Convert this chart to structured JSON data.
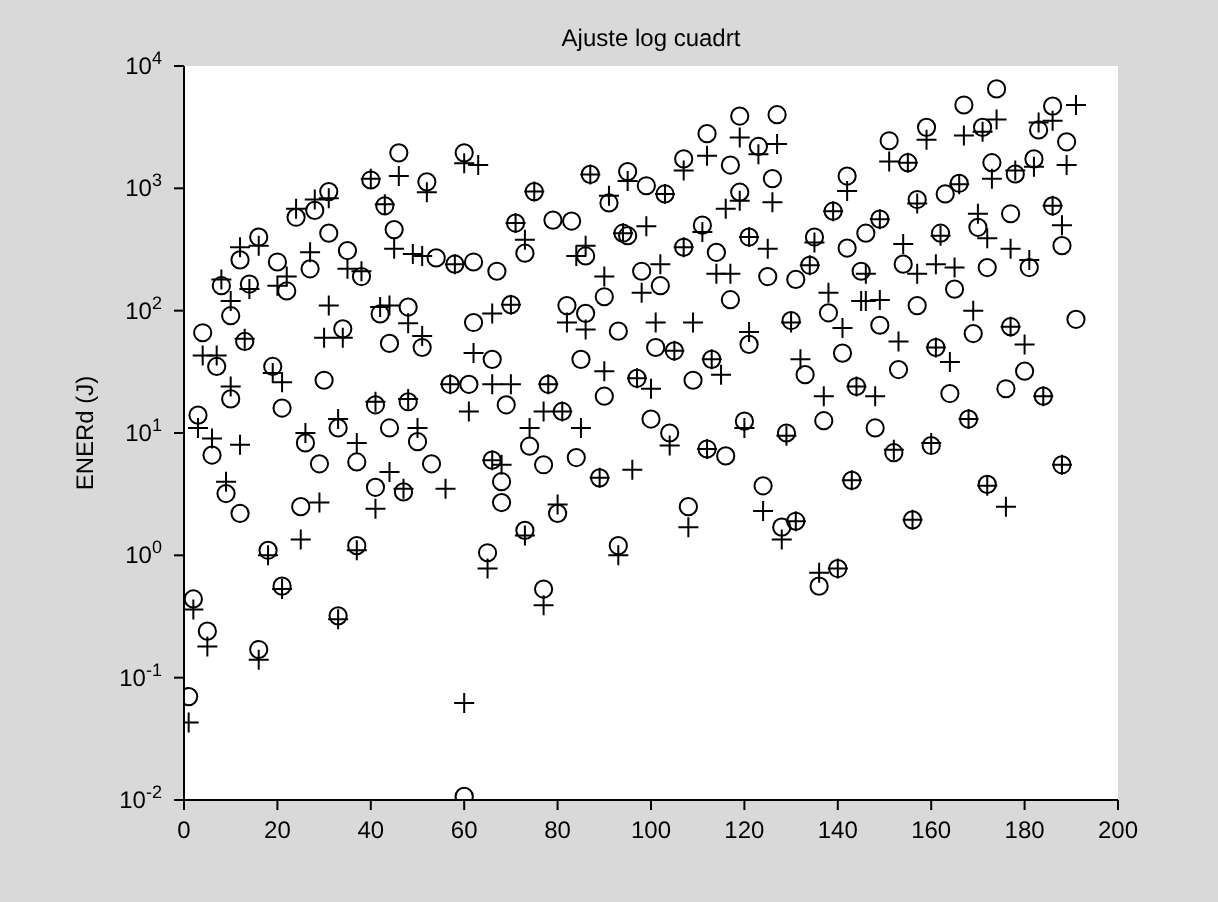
{
  "chart_data": {
    "type": "scatter",
    "title": "Ajuste log cuadrt",
    "ylabel": "ENERd (J)",
    "log": "y",
    "xlim": [
      0,
      200
    ],
    "xticks": [
      0,
      20,
      40,
      60,
      80,
      100,
      120,
      140,
      160,
      180,
      200
    ],
    "ylim": [
      0.01,
      10000
    ],
    "yticks": [
      {
        "value": 0.01,
        "label": "10$^{-2}$"
      },
      {
        "value": 0.1,
        "label": "10$^{-1}$"
      },
      {
        "value": 1,
        "label": "10$^{0}$"
      },
      {
        "value": 10,
        "label": "10$^{1}$"
      },
      {
        "value": 100,
        "label": "10$^{2}$"
      },
      {
        "value": 1000,
        "label": "10$^{3}$"
      },
      {
        "value": 10000,
        "label": "10$^{4}$"
      }
    ],
    "series": [
      {
        "color": "#000000",
        "marker": "circle",
        "x": [
          1,
          2,
          3,
          4,
          5,
          6,
          7,
          8,
          9,
          10,
          10,
          12,
          12,
          13,
          14,
          16,
          16,
          18,
          19,
          20,
          21,
          21,
          22,
          24,
          25,
          26,
          27,
          28,
          29,
          30,
          31,
          31,
          33,
          33,
          34,
          35,
          37,
          37,
          38,
          40,
          41,
          41,
          42,
          43,
          44,
          44,
          45,
          46,
          47,
          48,
          48,
          50,
          51,
          52,
          53,
          54,
          57,
          58,
          60,
          60,
          61,
          62,
          62,
          65,
          66,
          66,
          67,
          68,
          68,
          69,
          70,
          71,
          73,
          73,
          74,
          75,
          77,
          77,
          78,
          79,
          80,
          81,
          82,
          83,
          84,
          85,
          86,
          86,
          87,
          89,
          90,
          90,
          91,
          93,
          93,
          94,
          95,
          95,
          97,
          98,
          99,
          100,
          101,
          102,
          103,
          104,
          105,
          107,
          107,
          108,
          109,
          111,
          112,
          112,
          113,
          114,
          116,
          117,
          117,
          119,
          119,
          120,
          121,
          121,
          123,
          124,
          125,
          126,
          127,
          128,
          129,
          130,
          131,
          131,
          133,
          134,
          135,
          136,
          137,
          138,
          139,
          140,
          141,
          142,
          142,
          143,
          144,
          145,
          146,
          148,
          149,
          149,
          151,
          152,
          153,
          154,
          155,
          156,
          157,
          157,
          159,
          160,
          161,
          162,
          163,
          164,
          165,
          166,
          167,
          168,
          169,
          170,
          171,
          172,
          172,
          173,
          174,
          176,
          177,
          177,
          178,
          180,
          181,
          182,
          183,
          184,
          186,
          186,
          188,
          188,
          189,
          191
        ],
        "values": [
          0.07,
          0.44,
          14,
          66,
          0.24,
          6.6,
          35,
          160,
          3.2,
          19,
          91,
          260,
          2.2,
          56,
          165,
          400,
          0.17,
          1.1,
          35,
          250,
          0.56,
          16,
          145,
          580,
          2.5,
          8.3,
          220,
          660,
          5.6,
          27,
          430,
          940,
          0.32,
          11,
          71,
          310,
          1.2,
          5.8,
          190,
          1170,
          3.6,
          17,
          94,
          720,
          11,
          54,
          460,
          1950,
          3.3,
          18,
          107,
          8.5,
          50,
          1130,
          5.6,
          270,
          25,
          240,
          1950,
          0.0107,
          25,
          250,
          80,
          1.05,
          40,
          6,
          210,
          4,
          2.7,
          17,
          112,
          520,
          295,
          1.6,
          7.8,
          940,
          5.5,
          0.53,
          25,
          550,
          2.2,
          15,
          110,
          540,
          6.3,
          40,
          95,
          280,
          1300,
          4.3,
          20,
          130,
          760,
          1.2,
          68,
          430,
          1370,
          410,
          28,
          210,
          1050,
          13,
          50,
          160,
          900,
          10,
          47,
          330,
          1740,
          2.5,
          27,
          500,
          7.4,
          2800,
          40,
          300,
          6.5,
          1550,
          123,
          930,
          3900,
          12.5,
          53,
          400,
          2200,
          3.7,
          190,
          1200,
          4000,
          1.7,
          10,
          83,
          1.9,
          180,
          30,
          235,
          400,
          0.56,
          12.6,
          96,
          650,
          0.78,
          45,
          1260,
          325,
          4.1,
          24,
          210,
          430,
          11,
          560,
          76,
          2450,
          6.9,
          33,
          240,
          1620,
          1.95,
          110,
          810,
          3150,
          7.9,
          50,
          430,
          900,
          21,
          150,
          1100,
          4800,
          13,
          65,
          480,
          3150,
          3.8,
          225,
          1620,
          6500,
          23,
          74,
          620,
          1310,
          32,
          225,
          1740,
          3000,
          20,
          720,
          4700,
          5.5,
          340,
          2400,
          85
        ]
      },
      {
        "color": "#000000",
        "marker": "cross",
        "x": [
          1,
          2,
          3,
          4,
          5,
          6,
          7,
          8,
          9,
          10,
          10,
          12,
          12,
          13,
          14,
          16,
          16,
          18,
          19,
          20,
          21,
          21,
          22,
          24,
          25,
          26,
          27,
          28,
          29,
          30,
          31,
          31,
          33,
          33,
          34,
          35,
          37,
          37,
          38,
          40,
          41,
          41,
          42,
          43,
          44,
          44,
          45,
          46,
          47,
          48,
          48,
          49,
          50,
          51,
          51,
          52,
          56,
          57,
          58,
          60,
          60,
          61,
          62,
          63,
          65,
          66,
          66,
          66,
          68,
          70,
          70,
          71,
          73,
          73,
          74,
          75,
          77,
          77,
          78,
          80,
          81,
          82,
          84,
          85,
          86,
          86,
          87,
          89,
          90,
          90,
          91,
          93,
          94,
          95,
          96,
          97,
          98,
          99,
          100,
          101,
          102,
          103,
          104,
          105,
          107,
          107,
          108,
          109,
          111,
          112,
          112,
          113,
          114,
          115,
          116,
          117,
          119,
          119,
          120,
          121,
          121,
          123,
          124,
          125,
          126,
          127,
          128,
          129,
          130,
          131,
          132,
          134,
          135,
          136,
          137,
          138,
          139,
          140,
          141,
          142,
          143,
          144,
          145,
          146,
          146,
          148,
          149,
          149,
          151,
          152,
          153,
          154,
          155,
          156,
          157,
          157,
          159,
          160,
          161,
          161,
          162,
          164,
          165,
          166,
          167,
          168,
          169,
          170,
          171,
          172,
          172,
          173,
          174,
          176,
          177,
          177,
          178,
          180,
          181,
          182,
          183,
          184,
          186,
          186,
          188,
          188,
          189,
          191
        ],
        "values": [
          0.043,
          0.36,
          11,
          43,
          0.18,
          9,
          43,
          180,
          4,
          24,
          120,
          330,
          8,
          59,
          150,
          340,
          0.14,
          1.0,
          31,
          160,
          0.53,
          26,
          190,
          680,
          1.35,
          10,
          300,
          810,
          2.7,
          60,
          110,
          830,
          0.3,
          13,
          60,
          220,
          1.1,
          8.3,
          210,
          1200,
          2.4,
          18,
          107,
          740,
          4.8,
          110,
          320,
          1260,
          3.5,
          19,
          79,
          290,
          11,
          62,
          280,
          930,
          3.5,
          25,
          240,
          1600,
          0.062,
          15,
          45,
          1550,
          0.78,
          95,
          25,
          6,
          5.5,
          25,
          112,
          520,
          380,
          1.45,
          11,
          940,
          0.39,
          15,
          25,
          2.6,
          15,
          80,
          280,
          11,
          70,
          340,
          1300,
          4.3,
          32,
          190,
          870,
          1.0,
          430,
          1150,
          5,
          28,
          140,
          490,
          23,
          80,
          240,
          900,
          7.9,
          47,
          330,
          1400,
          1.7,
          80,
          440,
          7.4,
          1850,
          40,
          200,
          30,
          680,
          200,
          790,
          2600,
          11,
          67,
          400,
          1900,
          2.3,
          320,
          770,
          2300,
          1.35,
          9.5,
          80,
          1.9,
          40,
          235,
          360,
          0.72,
          20,
          140,
          650,
          0.78,
          72,
          950,
          4.1,
          24,
          120,
          200,
          120,
          20,
          560,
          122,
          1660,
          7.3,
          56,
          350,
          1620,
          1.95,
          200,
          750,
          2500,
          8.3,
          50,
          240,
          410,
          38,
          225,
          1080,
          2700,
          13,
          100,
          620,
          2900,
          3.7,
          390,
          1200,
          3650,
          2.5,
          74,
          320,
          1400,
          53,
          260,
          1500,
          3450,
          20,
          720,
          3560,
          5.5,
          500,
          1550,
          4800
        ]
      }
    ]
  }
}
